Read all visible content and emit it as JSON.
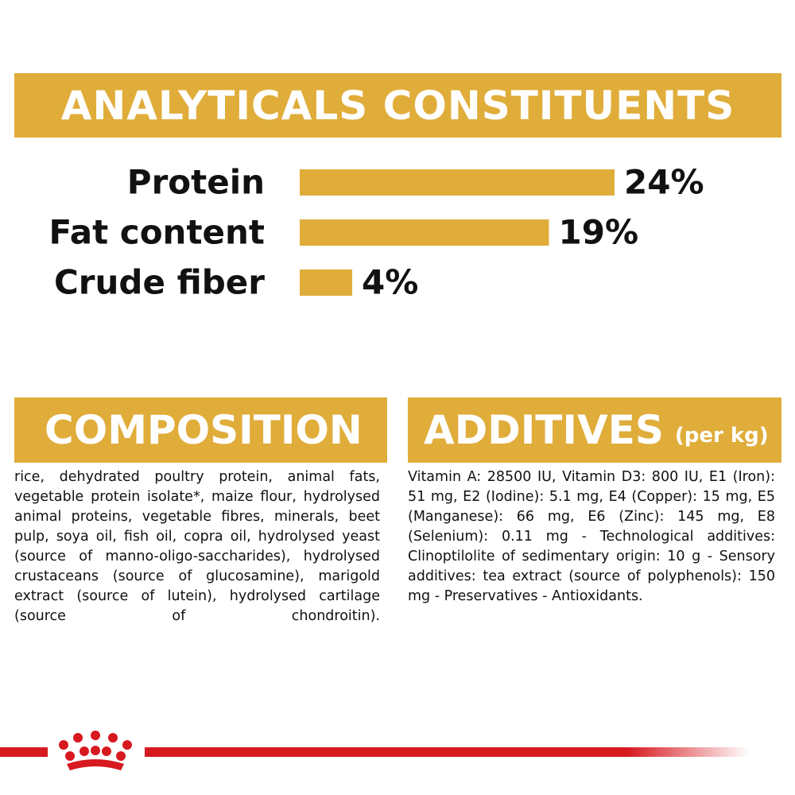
{
  "chart_data": {
    "type": "bar",
    "title": "ANALYTICALS CONSTITUENTS",
    "categories": [
      "Protein",
      "Fat content",
      "Crude fiber"
    ],
    "values": [
      24,
      19,
      4
    ],
    "value_labels": [
      "24%",
      "19%",
      "4%"
    ],
    "color": "#e0ad3a"
  },
  "composition": {
    "title": "COMPOSITION",
    "text": "rice, dehydrated poultry protein, animal fats, vegetable protein isolate*, maize flour, hydrolysed animal proteins, vegetable fibres, minerals, beet pulp, soya oil, fish oil, copra oil, hydrolysed yeast (source of manno-oligo-saccharides), hydrolysed crustaceans (source of glucosamine), marigold extract (source of lutein), hydrolysed cartilage (source of chondroitin)."
  },
  "additives": {
    "title": "ADDITIVES",
    "subtitle": "(per kg)",
    "text": "Vitamin A: 28500 IU, Vitamin D3: 800 IU, E1 (Iron): 51 mg, E2 (Iodine): 5.1 mg, E4 (Copper): 15 mg, E5 (Manganese): 66 mg, E6 (Zinc): 145 mg, E8 (Selenium): 0.11 mg - Technological additives: Clinoptilolite of sedimentary origin: 10 g - Sensory additives: tea extract (source of polyphenols): 150 mg - Preservatives - Antioxidants."
  }
}
